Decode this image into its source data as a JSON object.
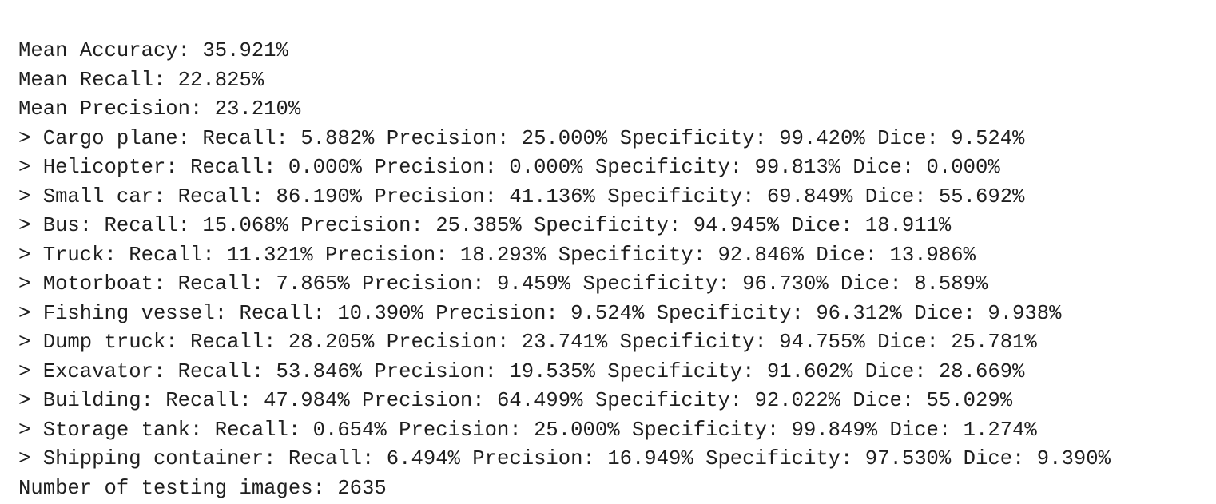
{
  "lines": [
    "Mean Accuracy: 35.921%",
    "Mean Recall: 22.825%",
    "Mean Precision: 23.210%",
    "> Cargo plane: Recall: 5.882% Precision: 25.000% Specificity: 99.420% Dice: 9.524%",
    "> Helicopter: Recall: 0.000% Precision: 0.000% Specificity: 99.813% Dice: 0.000%",
    "> Small car: Recall: 86.190% Precision: 41.136% Specificity: 69.849% Dice: 55.692%",
    "> Bus: Recall: 15.068% Precision: 25.385% Specificity: 94.945% Dice: 18.911%",
    "> Truck: Recall: 11.321% Precision: 18.293% Specificity: 92.846% Dice: 13.986%",
    "> Motorboat: Recall: 7.865% Precision: 9.459% Specificity: 96.730% Dice: 8.589%",
    "> Fishing vessel: Recall: 10.390% Precision: 9.524% Specificity: 96.312% Dice: 9.938%",
    "> Dump truck: Recall: 28.205% Precision: 23.741% Specificity: 94.755% Dice: 25.781%",
    "> Excavator: Recall: 53.846% Precision: 19.535% Specificity: 91.602% Dice: 28.669%",
    "> Building: Recall: 47.984% Precision: 64.499% Specificity: 92.022% Dice: 55.029%",
    "> Storage tank: Recall: 0.654% Precision: 25.000% Specificity: 99.849% Dice: 1.274%",
    "> Shipping container: Recall: 6.494% Precision: 16.949% Specificity: 97.530% Dice: 9.390%",
    "Number of testing images: 2635"
  ]
}
